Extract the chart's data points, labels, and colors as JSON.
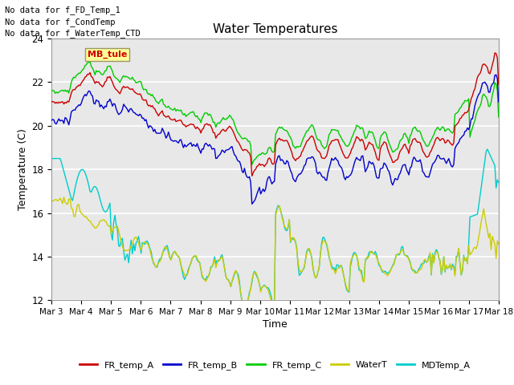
{
  "title": "Water Temperatures",
  "xlabel": "Time",
  "ylabel": "Temperature (C)",
  "annotations": [
    "No data for f_FD_Temp_1",
    "No data for f_CondTemp",
    "No data for f_WaterTemp_CTD"
  ],
  "legend_label": "MB_tule",
  "x_tick_labels": [
    "Mar 3",
    "Mar 4",
    "Mar 5",
    "Mar 6",
    "Mar 7",
    "Mar 8",
    "Mar 9",
    "Mar 10",
    "Mar 11",
    "Mar 12",
    "Mar 13",
    "Mar 14",
    "Mar 15",
    "Mar 16",
    "Mar 17",
    "Mar 18"
  ],
  "ylim": [
    12,
    24
  ],
  "yticks": [
    12,
    14,
    16,
    18,
    20,
    22,
    24
  ],
  "series_colors": {
    "FR_temp_A": "#cc0000",
    "FR_temp_B": "#0000cc",
    "FR_temp_C": "#00cc00",
    "WaterT": "#cccc00",
    "MDTemp_A": "#00cccc"
  },
  "plot_bg_color": "#e8e8e8",
  "grid_color": "#ffffff",
  "figsize": [
    6.4,
    4.8
  ],
  "dpi": 100
}
